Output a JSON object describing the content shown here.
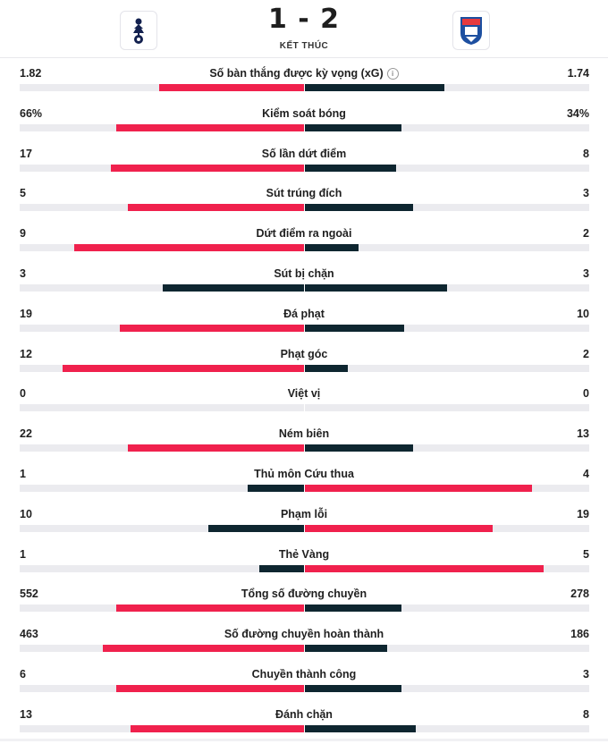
{
  "match": {
    "score": "1 - 2",
    "status": "KẾT THÚC",
    "home_logo": "tottenham-crest-icon",
    "away_logo": "ipswich-crest-icon"
  },
  "colors": {
    "highlight": "#f0214d",
    "dark": "#0e2630",
    "track": "#ebebef"
  },
  "max_fraction_by_row_note_removed": true,
  "stats": [
    {
      "label": "Số bàn thắng được kỳ vọng (xG)",
      "home": "1.82",
      "away": "1.74",
      "home_bar": 0.51,
      "away_bar": 0.49,
      "winner": "home",
      "info": true
    },
    {
      "label": "Kiểm soát bóng",
      "home": "66%",
      "away": "34%",
      "home_bar": 0.66,
      "away_bar": 0.34,
      "winner": "home"
    },
    {
      "label": "Số lần dứt điểm",
      "home": "17",
      "away": "8",
      "home_bar": 0.68,
      "away_bar": 0.32,
      "winner": "home"
    },
    {
      "label": "Sút trúng đích",
      "home": "5",
      "away": "3",
      "home_bar": 0.62,
      "away_bar": 0.38,
      "winner": "home"
    },
    {
      "label": "Dứt điểm ra ngoài",
      "home": "9",
      "away": "2",
      "home_bar": 0.81,
      "away_bar": 0.19,
      "winner": "home"
    },
    {
      "label": "Sút bị chặn",
      "home": "3",
      "away": "3",
      "home_bar": 0.5,
      "away_bar": 0.5,
      "winner": "none"
    },
    {
      "label": "Đá phạt",
      "home": "19",
      "away": "10",
      "home_bar": 0.65,
      "away_bar": 0.35,
      "winner": "home"
    },
    {
      "label": "Phạt góc",
      "home": "12",
      "away": "2",
      "home_bar": 0.85,
      "away_bar": 0.15,
      "winner": "home"
    },
    {
      "label": "Việt vị",
      "home": "0",
      "away": "0",
      "home_bar": 0,
      "away_bar": 0,
      "winner": "none"
    },
    {
      "label": "Ném biên",
      "home": "22",
      "away": "13",
      "home_bar": 0.62,
      "away_bar": 0.38,
      "winner": "home"
    },
    {
      "label": "Thủ môn Cứu thua",
      "home": "1",
      "away": "4",
      "home_bar": 0.2,
      "away_bar": 0.8,
      "winner": "away"
    },
    {
      "label": "Phạm lỗi",
      "home": "10",
      "away": "19",
      "home_bar": 0.34,
      "away_bar": 0.66,
      "winner": "away"
    },
    {
      "label": "Thẻ Vàng",
      "home": "1",
      "away": "5",
      "home_bar": 0.16,
      "away_bar": 0.84,
      "winner": "away"
    },
    {
      "label": "Tổng số đường chuyền",
      "home": "552",
      "away": "278",
      "home_bar": 0.66,
      "away_bar": 0.34,
      "winner": "home"
    },
    {
      "label": "Số đường chuyền hoàn thành",
      "home": "463",
      "away": "186",
      "home_bar": 0.71,
      "away_bar": 0.29,
      "winner": "home"
    },
    {
      "label": "Chuyền thành công",
      "home": "6",
      "away": "3",
      "home_bar": 0.66,
      "away_bar": 0.34,
      "winner": "home"
    },
    {
      "label": "Đánh chặn",
      "home": "13",
      "away": "8",
      "home_bar": 0.61,
      "away_bar": 0.39,
      "winner": "home"
    }
  ]
}
